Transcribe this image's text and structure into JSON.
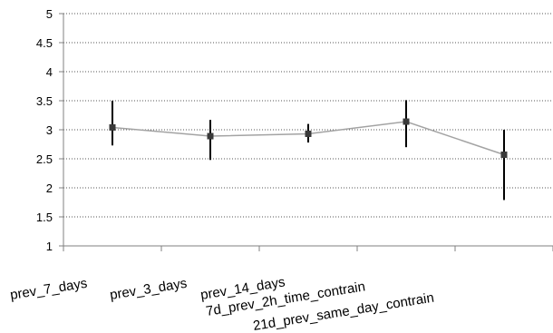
{
  "chart_data": {
    "type": "line",
    "categories": [
      "prev_7_days",
      "prev_3_days",
      "prev_14_days",
      "7d_prev_2h_time_contrain",
      "21d_prev_same_day_contrain"
    ],
    "series": [
      {
        "values": [
          3.04,
          2.89,
          2.93,
          3.14,
          2.57
        ],
        "error_low": [
          2.73,
          2.48,
          2.78,
          2.7,
          1.79
        ],
        "error_high": [
          3.5,
          3.17,
          3.1,
          3.51,
          3.0
        ]
      }
    ],
    "yticks": [
      "1",
      "1.5",
      "2",
      "2.5",
      "3",
      "3.5",
      "4",
      "4.5",
      "5"
    ],
    "ylim": [
      1,
      5
    ],
    "grid": true,
    "legend": "none",
    "colors": {
      "line": "#a3a3a3",
      "marker": "#3a3a3a",
      "error_bar": "#000000",
      "grid": "#555555",
      "axis": "#808080"
    }
  }
}
